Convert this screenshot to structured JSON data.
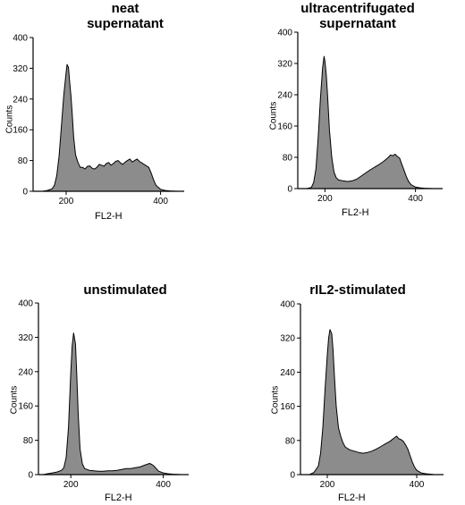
{
  "chart_data": [
    {
      "type": "area",
      "title": "neat\nsupernatant",
      "xlabel": "FL2-H",
      "ylabel": "Counts",
      "xlim": [
        130,
        450
      ],
      "ylim": [
        0,
        400
      ],
      "xticks": [
        200,
        400
      ],
      "yticks": [
        0,
        80,
        160,
        240,
        320,
        400
      ],
      "fill_color": "#8c8c8c",
      "x": [
        150,
        160,
        170,
        175,
        180,
        185,
        190,
        195,
        200,
        202,
        205,
        207,
        210,
        213,
        216,
        220,
        225,
        230,
        235,
        240,
        245,
        250,
        255,
        260,
        265,
        270,
        275,
        280,
        285,
        290,
        295,
        300,
        305,
        310,
        315,
        320,
        325,
        330,
        335,
        340,
        345,
        350,
        355,
        360,
        365,
        370,
        375,
        380,
        385,
        390,
        395,
        400,
        410,
        420,
        435
      ],
      "values": [
        0,
        2,
        6,
        15,
        40,
        90,
        170,
        250,
        310,
        330,
        322,
        290,
        250,
        200,
        140,
        95,
        75,
        62,
        62,
        58,
        65,
        66,
        60,
        58,
        62,
        70,
        68,
        65,
        72,
        75,
        68,
        72,
        78,
        80,
        74,
        70,
        76,
        80,
        84,
        76,
        80,
        84,
        78,
        74,
        70,
        66,
        62,
        48,
        30,
        16,
        10,
        5,
        2,
        1,
        0
      ]
    },
    {
      "type": "area",
      "title": "ultracentrifugated\nsupernatant",
      "xlabel": "FL2-H",
      "ylabel": "Counts",
      "xlim": [
        140,
        460
      ],
      "ylim": [
        0,
        400
      ],
      "xticks": [
        200,
        400
      ],
      "yticks": [
        0,
        80,
        160,
        240,
        320,
        400
      ],
      "fill_color": "#8c8c8c",
      "x": [
        160,
        170,
        175,
        180,
        185,
        190,
        195,
        198,
        200,
        203,
        206,
        210,
        215,
        220,
        225,
        230,
        240,
        250,
        260,
        270,
        280,
        290,
        300,
        310,
        320,
        330,
        340,
        345,
        350,
        355,
        360,
        365,
        370,
        375,
        380,
        385,
        390,
        400,
        410,
        420,
        440
      ],
      "values": [
        0,
        3,
        15,
        50,
        130,
        230,
        310,
        338,
        325,
        290,
        235,
        150,
        80,
        42,
        28,
        22,
        20,
        18,
        20,
        24,
        32,
        40,
        48,
        55,
        62,
        70,
        80,
        86,
        84,
        88,
        82,
        78,
        62,
        46,
        30,
        18,
        10,
        4,
        2,
        1,
        0
      ]
    },
    {
      "type": "area",
      "title": "unstimulated",
      "xlabel": "FL2-H",
      "ylabel": "Counts",
      "xlim": [
        130,
        455
      ],
      "ylim": [
        0,
        400
      ],
      "xticks": [
        200,
        400
      ],
      "yticks": [
        0,
        80,
        160,
        240,
        320,
        400
      ],
      "fill_color": "#8c8c8c",
      "x": [
        140,
        150,
        160,
        170,
        180,
        185,
        190,
        195,
        200,
        203,
        206,
        210,
        213,
        216,
        220,
        225,
        230,
        235,
        240,
        250,
        260,
        270,
        280,
        290,
        300,
        310,
        320,
        330,
        340,
        350,
        360,
        365,
        370,
        375,
        380,
        385,
        390,
        400,
        410,
        420,
        440
      ],
      "values": [
        0,
        2,
        4,
        6,
        10,
        16,
        40,
        110,
        240,
        300,
        330,
        305,
        230,
        140,
        60,
        25,
        14,
        12,
        10,
        9,
        8,
        8,
        9,
        9,
        10,
        12,
        14,
        14,
        16,
        18,
        22,
        24,
        26,
        24,
        20,
        14,
        8,
        4,
        2,
        1,
        0
      ]
    },
    {
      "type": "area",
      "title": "rIL2-stimulated",
      "xlabel": "FL2-H",
      "ylabel": "Counts",
      "xlim": [
        140,
        460
      ],
      "ylim": [
        0,
        400
      ],
      "xticks": [
        200,
        400
      ],
      "yticks": [
        0,
        80,
        160,
        240,
        320,
        400
      ],
      "fill_color": "#8c8c8c",
      "x": [
        160,
        170,
        180,
        185,
        190,
        195,
        200,
        203,
        206,
        210,
        213,
        216,
        220,
        225,
        230,
        235,
        240,
        250,
        260,
        270,
        280,
        290,
        300,
        310,
        320,
        330,
        340,
        345,
        350,
        355,
        360,
        365,
        370,
        375,
        380,
        385,
        390,
        395,
        400,
        410,
        420,
        440
      ],
      "values": [
        0,
        5,
        20,
        50,
        110,
        200,
        280,
        320,
        340,
        330,
        290,
        230,
        160,
        110,
        90,
        75,
        65,
        58,
        55,
        52,
        50,
        52,
        55,
        60,
        66,
        72,
        78,
        82,
        86,
        90,
        84,
        82,
        78,
        70,
        60,
        45,
        30,
        18,
        10,
        4,
        2,
        0
      ]
    }
  ]
}
